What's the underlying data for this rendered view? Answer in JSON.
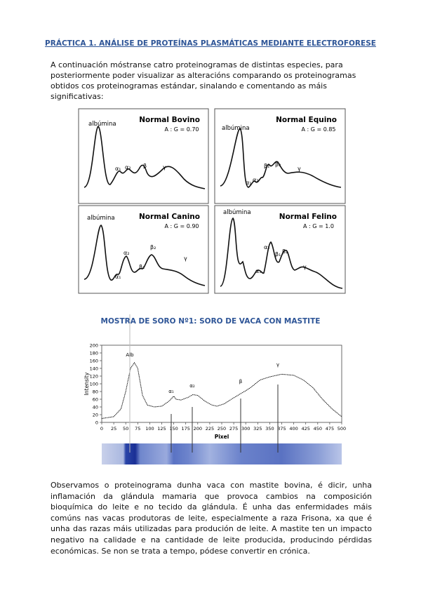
{
  "header": {
    "title": "PRÁCTICA 1. ANÁLISE DE PROTEÍNAS PLASMÁTICAS MEDIANTE ELECTROFORESE"
  },
  "intro": "A continuación móstranse catro proteinogramas de distintas especies, para posteriormente poder visualizar as alteracións comparando os proteinogramas obtidos cos proteinogramas estándar, sinalando e comentando as máis significativas:",
  "panels": [
    {
      "title": "Normal Bovino",
      "ratio": "A : G = 0.70",
      "labels": [
        "albúmina",
        "α₁",
        "α₂",
        "β",
        "γ"
      ]
    },
    {
      "title": "Normal Equino",
      "ratio": "A : G = 0.85",
      "labels": [
        "albúmina",
        "α₁",
        "α₂",
        "β₁",
        "β₂",
        "γ"
      ]
    },
    {
      "title": "Normal Canino",
      "ratio": "A : G = 0.90",
      "labels": [
        "albúmina",
        "α₁",
        "α₂",
        "β₁",
        "β₂",
        "γ"
      ]
    },
    {
      "title": "Normal Felino",
      "ratio": "A : G = 1.0",
      "labels": [
        "albúmina",
        "α₁",
        "α₂",
        "β₁",
        "β₂",
        "γ"
      ]
    }
  ],
  "section_title": "MOSTRA DE SORO Nº1: SORO DE VACA CON MASTITE",
  "figure": {
    "ylabel": "Intensity",
    "xlabel": "Pixel",
    "yticks": [
      0,
      20,
      40,
      60,
      80,
      100,
      120,
      140,
      160,
      180,
      200
    ],
    "xticks": [
      0,
      25,
      50,
      75,
      100,
      125,
      150,
      175,
      200,
      225,
      250,
      275,
      300,
      325,
      350,
      375,
      400,
      425,
      450,
      475,
      500
    ],
    "labels": [
      "Alb",
      "α₁",
      "α₂",
      "β",
      "γ"
    ]
  },
  "body": "Observamos o proteinograma dunha vaca con mastite bovina, é dicir, unha inflamación da glándula mamaria que provoca cambios na composición bioquímica do leite e no tecido da glándula. É unha das enfermidades máis comúns nas vacas produtoras de leite, especialmente a raza Frisona, xa que é unha das razas máis utilizadas para produción de leite. A mastite ten un impacto negativo na calidade e na cantidade de leite producida, producindo pérdidas económicas. Se non se trata a tempo, pódese convertir en crónica."
}
